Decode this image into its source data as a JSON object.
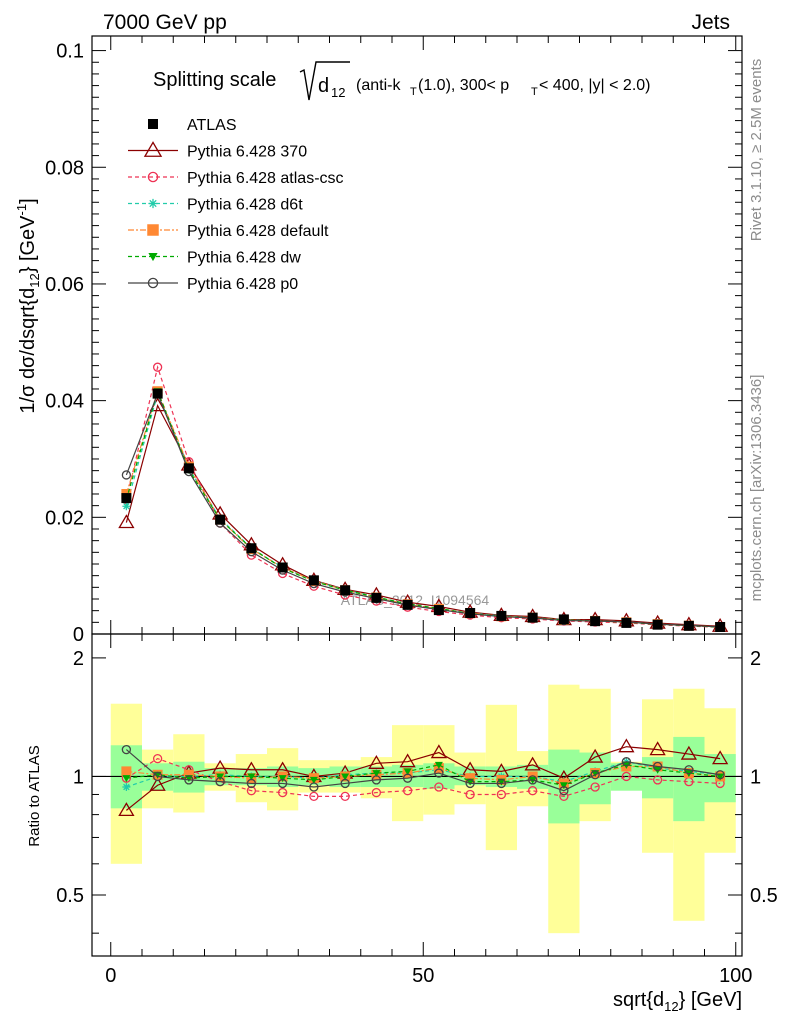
{
  "header": {
    "left": "7000 GeV pp",
    "right": "Jets",
    "side_top": "Rivet 3.1.10, ≥ 2.5M events",
    "side_bottom": "mcplots.cern.ch [arXiv:1306.3436]",
    "watermark": "ATLAS_2012_I1094564"
  },
  "title": {
    "main": "Splitting scale",
    "sqrt_body": "d",
    "sqrt_sub": "12",
    "paren_a": "(anti-k",
    "paren_a_sub": "T",
    "paren_b": "(1.0), 300< p",
    "paren_b_sub": "T",
    "paren_c": " < 400, |y| < 2.0)"
  },
  "labels": {
    "ylabel_a": "1/σ dσ/dsqrt{d",
    "ylabel_sub": "12",
    "ylabel_b": "} [GeV",
    "ylabel_sup": "-1",
    "ylabel_c": "]",
    "ratio_ylabel": "Ratio to ATLAS",
    "xlabel_a": "sqrt{d",
    "xlabel_sub": "12",
    "xlabel_b": "} [GeV]"
  },
  "colors": {
    "data": "#000000",
    "p370": "#8b0000",
    "atlascsc": "#ee3355",
    "d6t": "#22ccaa",
    "default": "#ff8833",
    "dw": "#00aa00",
    "p0": "#444444",
    "band_outer": "#ffff99",
    "band_inner": "#99ff99"
  },
  "chart_data": {
    "type": "line",
    "title": "Splitting scale sqrt{d12} (anti-kT(1.0), 300< pT < 400, |y| < 2.0)",
    "xlabel": "sqrt{d12} [GeV]",
    "ylabel": "1/σ dσ/dsqrt{d12} [GeV^-1]",
    "ratio_ylabel": "Ratio to ATLAS",
    "xlim": [
      -3,
      101
    ],
    "ylim": [
      0,
      0.1025
    ],
    "ratio_ylim": [
      0.35,
      2.3
    ],
    "x_ticks": [
      "0",
      "50",
      "100"
    ],
    "y_ticks": [
      "0",
      "0.02",
      "0.04",
      "0.06",
      "0.08",
      "0.1"
    ],
    "ratio_ticks": [
      "0.5",
      "1",
      "2"
    ],
    "bin_edges": [
      0,
      5,
      10,
      15,
      20,
      25,
      30,
      35,
      40,
      45,
      50,
      55,
      60,
      65,
      70,
      75,
      80,
      85,
      90,
      95,
      100
    ],
    "x": [
      2.5,
      7.5,
      12.5,
      17.5,
      22.5,
      27.5,
      32.5,
      37.5,
      42.5,
      47.5,
      52.5,
      57.5,
      62.5,
      67.5,
      72.5,
      77.5,
      82.5,
      87.5,
      92.5,
      97.5
    ],
    "data": [
      0.0233,
      0.0412,
      0.0284,
      0.0196,
      0.0147,
      0.0114,
      0.0092,
      0.0075,
      0.0062,
      0.005,
      0.0041,
      0.0036,
      0.0031,
      0.0028,
      0.0025,
      0.0022,
      0.0019,
      0.0016,
      0.0014,
      0.0012
    ],
    "band_inner": [
      [
        0.83,
        1.2
      ],
      [
        0.92,
        1.08
      ],
      [
        0.91,
        1.09
      ],
      [
        0.95,
        1.05
      ],
      [
        0.95,
        1.05
      ],
      [
        0.94,
        1.06
      ],
      [
        0.95,
        1.05
      ],
      [
        0.94,
        1.06
      ],
      [
        0.94,
        1.06
      ],
      [
        0.94,
        1.07
      ],
      [
        0.93,
        1.08
      ],
      [
        0.95,
        1.06
      ],
      [
        0.94,
        1.06
      ],
      [
        0.93,
        1.07
      ],
      [
        0.76,
        1.17
      ],
      [
        0.85,
        1.15
      ],
      [
        0.92,
        1.08
      ],
      [
        0.88,
        1.12
      ],
      [
        0.77,
        1.26
      ],
      [
        0.86,
        1.14
      ]
    ],
    "band_outer": [
      [
        0.6,
        1.53
      ],
      [
        0.83,
        1.17
      ],
      [
        0.81,
        1.28
      ],
      [
        0.92,
        1.08
      ],
      [
        0.86,
        1.14
      ],
      [
        0.82,
        1.18
      ],
      [
        0.91,
        1.1
      ],
      [
        0.91,
        1.1
      ],
      [
        0.88,
        1.12
      ],
      [
        0.77,
        1.35
      ],
      [
        0.8,
        1.35
      ],
      [
        0.85,
        1.15
      ],
      [
        0.65,
        1.52
      ],
      [
        0.84,
        1.16
      ],
      [
        0.4,
        1.71
      ],
      [
        0.77,
        1.67
      ],
      [
        0.93,
        1.09
      ],
      [
        0.64,
        1.57
      ],
      [
        0.43,
        1.67
      ],
      [
        0.64,
        1.49
      ]
    ],
    "series": [
      {
        "name": "ATLAS",
        "key": "data",
        "marker": "square",
        "dash": "",
        "ratio": [
          1,
          1,
          1,
          1,
          1,
          1,
          1,
          1,
          1,
          1,
          1,
          1,
          1,
          1,
          1,
          1,
          1,
          1,
          1,
          1
        ]
      },
      {
        "name": "Pythia 6.428 370",
        "key": "p370",
        "marker": "triangle-open",
        "dash": "",
        "ratio": [
          0.82,
          0.95,
          1.02,
          1.05,
          1.04,
          1.04,
          1.0,
          1.02,
          1.08,
          1.09,
          1.15,
          1.04,
          1.03,
          1.07,
          0.99,
          1.12,
          1.19,
          1.17,
          1.14,
          1.11
        ]
      },
      {
        "name": "Pythia 6.428 atlas-csc",
        "key": "atlascsc",
        "marker": "circle-open",
        "dash": "4,3",
        "ratio": [
          0.99,
          1.11,
          1.04,
          0.97,
          0.92,
          0.91,
          0.89,
          0.89,
          0.91,
          0.92,
          0.94,
          0.9,
          0.9,
          0.92,
          0.89,
          0.94,
          1.0,
          0.98,
          0.97,
          0.96
        ]
      },
      {
        "name": "Pythia 6.428 d6t",
        "key": "d6t",
        "marker": "star",
        "dash": "4,3",
        "ratio": [
          0.94,
          1.0,
          1.0,
          1.01,
          1.0,
          1.0,
          0.99,
          1.01,
          1.02,
          1.02,
          1.04,
          1.0,
          1.0,
          1.0,
          0.97,
          1.03,
          1.09,
          1.05,
          1.03,
          1.01
        ]
      },
      {
        "name": "Pythia 6.428 default",
        "key": "default",
        "marker": "square",
        "dash": "6,2,2,2",
        "ratio": [
          1.03,
          1.01,
          1.01,
          1.0,
          0.99,
          1.0,
          0.99,
          1.0,
          1.01,
          1.02,
          1.05,
          0.99,
          0.98,
          1.0,
          0.96,
          1.02,
          1.06,
          1.06,
          1.02,
          1.0
        ]
      },
      {
        "name": "Pythia 6.428 dw",
        "key": "dw",
        "marker": "triangle-down",
        "dash": "4,3",
        "ratio": [
          0.99,
          1.01,
          0.99,
          1.0,
          1.0,
          0.99,
          0.98,
          1.0,
          1.02,
          1.03,
          1.07,
          0.97,
          0.97,
          0.98,
          0.95,
          1.02,
          1.07,
          1.04,
          1.02,
          1.0
        ]
      },
      {
        "name": "Pythia 6.428 p0",
        "key": "p0",
        "marker": "circle-open",
        "dash": "",
        "ratio": [
          1.17,
          1.0,
          0.98,
          0.97,
          0.96,
          0.96,
          0.94,
          0.96,
          0.98,
          0.99,
          1.02,
          0.96,
          0.96,
          0.98,
          0.92,
          1.01,
          1.09,
          1.06,
          1.04,
          1.01
        ]
      }
    ]
  }
}
